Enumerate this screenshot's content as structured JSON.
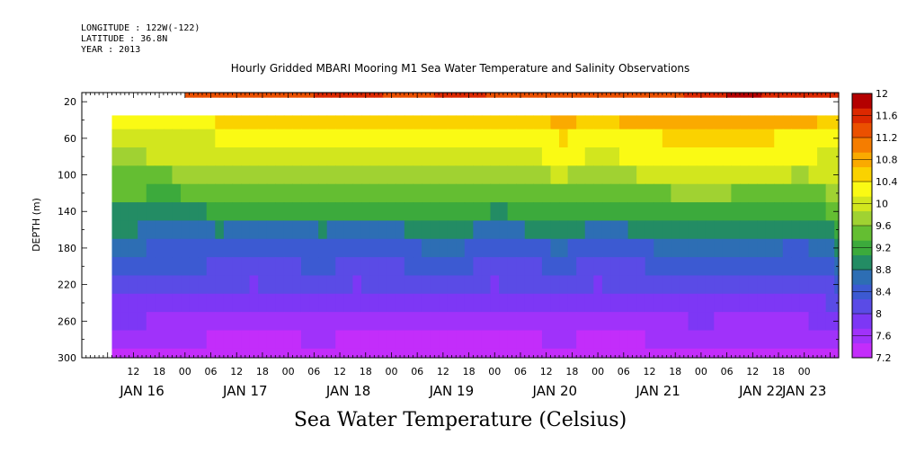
{
  "header": {
    "longitude": "LONGITUDE : 122W(-122)",
    "latitude": "LATITUDE : 36.8N",
    "year": "YEAR : 2013"
  },
  "chart_data": {
    "type": "heatmap",
    "title": "Hourly Gridded MBARI Mooring M1 Sea Water Temperature and Salinity Observations",
    "xlabel": "",
    "ylabel": "DEPTH (m)",
    "variable_label": "Sea Water Temperature (Celsius)",
    "x_range_hours": [
      0,
      176
    ],
    "y_range_m": [
      10,
      300
    ],
    "y_reversed": true,
    "y_ticks": [
      20,
      60,
      100,
      140,
      180,
      220,
      260,
      300
    ],
    "x_hour_ticks": [
      {
        "t": 12,
        "label": "12"
      },
      {
        "t": 18,
        "label": "18"
      },
      {
        "t": 24,
        "label": "00"
      },
      {
        "t": 30,
        "label": "06"
      },
      {
        "t": 36,
        "label": "12"
      },
      {
        "t": 42,
        "label": "18"
      },
      {
        "t": 48,
        "label": "00"
      },
      {
        "t": 54,
        "label": "06"
      },
      {
        "t": 60,
        "label": "12"
      },
      {
        "t": 66,
        "label": "18"
      },
      {
        "t": 72,
        "label": "00"
      },
      {
        "t": 78,
        "label": "06"
      },
      {
        "t": 84,
        "label": "12"
      },
      {
        "t": 90,
        "label": "18"
      },
      {
        "t": 96,
        "label": "00"
      },
      {
        "t": 102,
        "label": "06"
      },
      {
        "t": 108,
        "label": "12"
      },
      {
        "t": 114,
        "label": "18"
      },
      {
        "t": 120,
        "label": "00"
      },
      {
        "t": 126,
        "label": "06"
      },
      {
        "t": 132,
        "label": "12"
      },
      {
        "t": 138,
        "label": "18"
      },
      {
        "t": 144,
        "label": "00"
      },
      {
        "t": 150,
        "label": "06"
      },
      {
        "t": 156,
        "label": "12"
      },
      {
        "t": 162,
        "label": "18"
      },
      {
        "t": 168,
        "label": "00"
      }
    ],
    "x_date_labels": [
      {
        "t": 14,
        "label": "JAN 16"
      },
      {
        "t": 38,
        "label": "JAN 17"
      },
      {
        "t": 62,
        "label": "JAN 18"
      },
      {
        "t": 86,
        "label": "JAN 19"
      },
      {
        "t": 110,
        "label": "JAN 20"
      },
      {
        "t": 134,
        "label": "JAN 21"
      },
      {
        "t": 158,
        "label": "JAN 22"
      },
      {
        "t": 168,
        "label": "JAN 23"
      }
    ],
    "colorbar": {
      "levels": [
        7.2,
        7.6,
        8,
        8.4,
        8.8,
        9.2,
        9.6,
        10,
        10.4,
        10.8,
        11.2,
        11.6,
        12
      ],
      "colors": [
        "#c32dfa",
        "#a032fa",
        "#7d37f5",
        "#5a4be6",
        "#3c5ad2",
        "#2d6eb4",
        "#238c64",
        "#3caa3c",
        "#64be32",
        "#a0d232",
        "#d2e61e",
        "#fafa14",
        "#fad200",
        "#faaa00",
        "#f57d00",
        "#eb5000",
        "#dc2800",
        "#b40000"
      ]
    },
    "series": [
      {
        "name": "",
        "depth_m": 10,
        "t_start_hours": 24,
        "times": [
          24,
          40,
          56,
          64,
          72,
          88,
          104,
          120,
          136,
          150,
          154,
          158,
          166,
          176
        ],
        "values": [
          11.3,
          11.3,
          11.5,
          11.6,
          11.4,
          11.5,
          11.4,
          11.3,
          11.4,
          11.7,
          11.9,
          11.7,
          11.5,
          11.5
        ]
      },
      {
        "name": "",
        "depth_m": 40,
        "t_start_hours": 7,
        "times": [
          7,
          12,
          20,
          24,
          32,
          40,
          48,
          56,
          64,
          72,
          80,
          88,
          96,
          104,
          112,
          120,
          128,
          136,
          144,
          152,
          160,
          168,
          176
        ],
        "values": [
          10.3,
          10.3,
          10.35,
          10.35,
          10.4,
          10.5,
          10.5,
          10.6,
          10.6,
          10.55,
          10.6,
          10.6,
          10.55,
          10.6,
          10.7,
          10.6,
          10.7,
          10.8,
          10.85,
          10.8,
          10.75,
          10.7,
          10.6
        ]
      },
      {
        "name": "",
        "depth_m": 60,
        "times": [
          7,
          12,
          20,
          24,
          32,
          40,
          48,
          56,
          64,
          72,
          80,
          88,
          96,
          104,
          112,
          120,
          128,
          136,
          144,
          152,
          160,
          168,
          176
        ],
        "values": [
          10.0,
          10.0,
          10.05,
          10.05,
          10.15,
          10.2,
          10.2,
          10.25,
          10.3,
          10.25,
          10.3,
          10.35,
          10.25,
          10.3,
          10.4,
          10.3,
          10.35,
          10.4,
          10.5,
          10.45,
          10.4,
          10.35,
          10.3
        ]
      },
      {
        "name": "",
        "depth_m": 80,
        "times": [
          7,
          12,
          20,
          24,
          32,
          40,
          48,
          56,
          64,
          72,
          80,
          88,
          96,
          104,
          112,
          120,
          128,
          136,
          144,
          152,
          160,
          168,
          176
        ],
        "values": [
          9.85,
          9.85,
          9.9,
          9.9,
          10.0,
          10.05,
          10.05,
          10.1,
          10.1,
          10.05,
          10.1,
          10.1,
          10.05,
          10.1,
          10.2,
          10.1,
          10.15,
          10.2,
          10.3,
          10.25,
          10.2,
          10.15,
          10.1
        ]
      },
      {
        "name": "",
        "depth_m": 100,
        "times": [
          7,
          12,
          20,
          24,
          32,
          40,
          48,
          56,
          64,
          72,
          80,
          88,
          96,
          104,
          112,
          120,
          128,
          136,
          144,
          152,
          160,
          168,
          176
        ],
        "values": [
          9.6,
          9.6,
          9.6,
          9.65,
          9.75,
          9.8,
          9.75,
          9.85,
          9.8,
          9.75,
          9.8,
          9.85,
          9.7,
          9.8,
          9.9,
          9.75,
          9.85,
          9.95,
          10.0,
          9.95,
          9.9,
          9.85,
          9.95
        ]
      },
      {
        "name": "",
        "depth_m": 120,
        "times": [
          7,
          12,
          20,
          24,
          32,
          40,
          48,
          56,
          64,
          72,
          80,
          88,
          96,
          104,
          112,
          120,
          128,
          136,
          144,
          152,
          160,
          168,
          176
        ],
        "values": [
          9.35,
          9.35,
          9.3,
          9.35,
          9.45,
          9.5,
          9.45,
          9.5,
          9.5,
          9.45,
          9.5,
          9.55,
          9.4,
          9.45,
          9.55,
          9.45,
          9.5,
          9.6,
          9.65,
          9.6,
          9.55,
          9.5,
          9.7
        ]
      },
      {
        "name": "",
        "depth_m": 140,
        "times": [
          7,
          12,
          20,
          24,
          32,
          40,
          48,
          56,
          64,
          72,
          80,
          88,
          96,
          104,
          112,
          120,
          128,
          136,
          144,
          152,
          160,
          168,
          176
        ],
        "values": [
          9.0,
          9.0,
          8.95,
          9.0,
          9.1,
          9.1,
          9.1,
          9.15,
          9.1,
          9.1,
          9.15,
          9.2,
          9.05,
          9.1,
          9.2,
          9.1,
          9.1,
          9.2,
          9.3,
          9.25,
          9.2,
          9.15,
          9.4
        ]
      },
      {
        "name": "",
        "depth_m": 160,
        "times": [
          7,
          12,
          20,
          24,
          32,
          40,
          48,
          56,
          64,
          72,
          80,
          88,
          96,
          104,
          112,
          120,
          128,
          136,
          144,
          152,
          160,
          168,
          176
        ],
        "values": [
          8.8,
          8.8,
          8.75,
          8.75,
          8.8,
          8.75,
          8.75,
          8.8,
          8.75,
          8.75,
          8.85,
          8.85,
          8.7,
          8.8,
          8.85,
          8.75,
          8.8,
          8.85,
          8.95,
          8.9,
          8.85,
          8.8,
          9.1
        ]
      },
      {
        "name": "",
        "depth_m": 180,
        "times": [
          7,
          12,
          20,
          24,
          32,
          40,
          48,
          56,
          64,
          72,
          80,
          88,
          96,
          104,
          112,
          120,
          128,
          136,
          144,
          152,
          160,
          168,
          176
        ],
        "values": [
          8.55,
          8.55,
          8.5,
          8.5,
          8.45,
          8.4,
          8.45,
          8.5,
          8.4,
          8.45,
          8.55,
          8.55,
          8.4,
          8.5,
          8.55,
          8.45,
          8.5,
          8.55,
          8.65,
          8.6,
          8.55,
          8.5,
          8.8
        ]
      },
      {
        "name": "",
        "depth_m": 200,
        "times": [
          7,
          12,
          20,
          24,
          32,
          40,
          48,
          56,
          64,
          72,
          80,
          88,
          96,
          104,
          112,
          120,
          128,
          136,
          144,
          152,
          160,
          168,
          176
        ],
        "values": [
          8.35,
          8.35,
          8.3,
          8.3,
          8.25,
          8.2,
          8.25,
          8.3,
          8.2,
          8.25,
          8.3,
          8.3,
          8.2,
          8.25,
          8.3,
          8.2,
          8.25,
          8.3,
          8.4,
          8.35,
          8.3,
          8.3,
          8.55
        ]
      },
      {
        "name": "",
        "depth_m": 220,
        "times": [
          7,
          12,
          20,
          24,
          32,
          40,
          48,
          56,
          64,
          72,
          80,
          88,
          96,
          104,
          112,
          120,
          128,
          136,
          144,
          152,
          160,
          168,
          176
        ],
        "values": [
          8.15,
          8.15,
          8.1,
          8.1,
          8.05,
          8.0,
          8.05,
          8.1,
          8.0,
          8.05,
          8.1,
          8.1,
          8.0,
          8.05,
          8.1,
          8.0,
          8.05,
          8.1,
          8.2,
          8.15,
          8.1,
          8.1,
          8.3
        ]
      },
      {
        "name": "",
        "depth_m": 240,
        "times": [
          7,
          12,
          20,
          24,
          32,
          40,
          48,
          56,
          64,
          72,
          80,
          88,
          96,
          104,
          112,
          120,
          128,
          136,
          144,
          152,
          160,
          168,
          176
        ],
        "values": [
          7.95,
          7.95,
          7.9,
          7.9,
          7.85,
          7.85,
          7.85,
          7.9,
          7.8,
          7.85,
          7.9,
          7.9,
          7.8,
          7.85,
          7.9,
          7.8,
          7.85,
          7.9,
          8.0,
          7.95,
          7.9,
          7.9,
          8.1
        ]
      },
      {
        "name": "",
        "depth_m": 260,
        "times": [
          7,
          12,
          20,
          24,
          32,
          40,
          48,
          56,
          64,
          72,
          80,
          88,
          96,
          104,
          112,
          120,
          128,
          136,
          144,
          152,
          160,
          168,
          176
        ],
        "values": [
          7.75,
          7.75,
          7.7,
          7.7,
          7.65,
          7.65,
          7.65,
          7.7,
          7.6,
          7.65,
          7.7,
          7.7,
          7.6,
          7.65,
          7.7,
          7.6,
          7.65,
          7.7,
          7.75,
          7.7,
          7.7,
          7.7,
          7.85
        ]
      },
      {
        "name": "",
        "depth_m": 280,
        "times": [
          7,
          12,
          20,
          24,
          32,
          40,
          48,
          56,
          64,
          72,
          80,
          88,
          96,
          104,
          112,
          120,
          128,
          136,
          144,
          152,
          160,
          168,
          176
        ],
        "values": [
          7.55,
          7.55,
          7.5,
          7.5,
          7.45,
          7.45,
          7.45,
          7.5,
          7.4,
          7.45,
          7.45,
          7.45,
          7.4,
          7.45,
          7.5,
          7.4,
          7.45,
          7.5,
          7.5,
          7.5,
          7.5,
          7.5,
          7.6
        ]
      },
      {
        "name": "",
        "depth_m": 300,
        "times": [
          7,
          12,
          20,
          24,
          32,
          40,
          48,
          56,
          64,
          72,
          80,
          88,
          96,
          104,
          112,
          120,
          128,
          136,
          144,
          152,
          160,
          168,
          176
        ],
        "values": [
          7.35,
          7.35,
          7.3,
          7.3,
          7.25,
          7.25,
          7.25,
          7.3,
          7.2,
          7.25,
          7.25,
          7.25,
          7.2,
          7.25,
          7.3,
          7.2,
          7.25,
          7.3,
          7.3,
          7.3,
          7.3,
          7.3,
          7.4
        ]
      }
    ]
  }
}
